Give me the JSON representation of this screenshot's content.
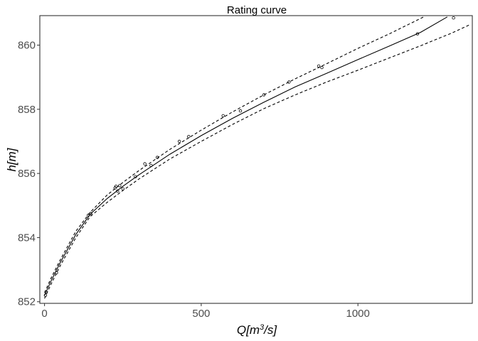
{
  "chart_data": {
    "type": "line",
    "title": "Rating curve",
    "xlabel": {
      "pre": "Q[m",
      "sup": "3",
      "post": "/s]"
    },
    "ylabel": "h[m]",
    "xlim": [
      -15,
      1365
    ],
    "ylim": [
      851.95,
      860.92
    ],
    "x_ticks": [
      0,
      500,
      1000
    ],
    "y_ticks": [
      852,
      854,
      856,
      858,
      860
    ],
    "grid": false,
    "colors": {
      "line": "#000000",
      "axis": "#333333",
      "tick_text": "#4d4d4d"
    },
    "series": [
      {
        "role": "fit",
        "style": "solid",
        "x": [
          0,
          20,
          50,
          100,
          145,
          200,
          250,
          300,
          400,
          500,
          600,
          700,
          800,
          900,
          1000,
          1100,
          1200,
          1285
        ],
        "y": [
          852.2,
          852.63,
          853.22,
          854.1,
          854.72,
          855.22,
          855.6,
          855.95,
          856.6,
          857.18,
          857.72,
          858.22,
          858.7,
          859.12,
          859.55,
          859.97,
          860.4,
          860.88
        ]
      },
      {
        "role": "upper",
        "style": "dashed",
        "x": [
          0,
          20,
          50,
          100,
          145,
          200,
          250,
          300,
          400,
          500,
          600,
          700,
          800,
          900,
          1000,
          1100,
          1210
        ],
        "y": [
          852.28,
          852.72,
          853.3,
          854.2,
          854.78,
          855.33,
          855.72,
          856.08,
          856.75,
          857.35,
          857.92,
          858.45,
          858.95,
          859.42,
          859.9,
          860.35,
          860.88
        ]
      },
      {
        "role": "lower",
        "style": "dashed",
        "x": [
          0,
          20,
          50,
          100,
          145,
          200,
          250,
          300,
          400,
          500,
          600,
          700,
          800,
          900,
          1000,
          1100,
          1200,
          1300,
          1360
        ],
        "y": [
          852.1,
          852.53,
          853.12,
          854.0,
          854.65,
          855.1,
          855.47,
          855.82,
          856.45,
          857.0,
          857.53,
          858.02,
          858.45,
          858.85,
          859.22,
          859.6,
          859.98,
          860.38,
          860.65
        ]
      }
    ],
    "observations": {
      "x": [
        3,
        5,
        38,
        140,
        147,
        225,
        228,
        233,
        240,
        250,
        290,
        320,
        340,
        360,
        430,
        460,
        570,
        625,
        700,
        780,
        875,
        885,
        1190,
        1305
      ],
      "y": [
        852.2,
        852.3,
        852.9,
        854.7,
        854.75,
        855.55,
        855.6,
        855.45,
        855.62,
        855.52,
        855.9,
        856.3,
        856.25,
        856.5,
        857.0,
        857.15,
        857.8,
        857.95,
        858.45,
        858.85,
        859.35,
        859.3,
        860.35,
        860.85
      ]
    }
  }
}
